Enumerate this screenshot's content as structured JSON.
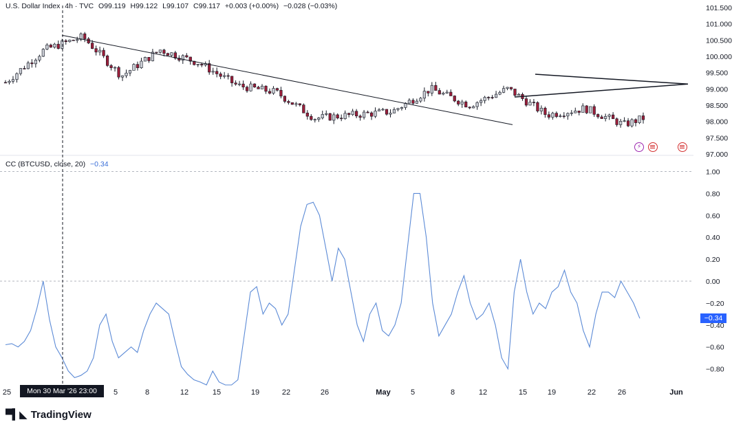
{
  "header": {
    "symbol": "U.S. Dollar Index",
    "interval_source": "4h · TVC",
    "open": "O99.119",
    "high": "H99.122",
    "low": "L99.107",
    "close": "C99.117",
    "change": "+0.003 (+0.00%)",
    "change2": "−0.028 (−0.03%)"
  },
  "indicator": {
    "label": "CC (BTCUSD, close, 20)",
    "value": "−0.34",
    "badge": "−0.34"
  },
  "crosshair": {
    "date_label": "Mon 30 Mar '26  23:00"
  },
  "brand": {
    "name": "TradingView",
    "icon": "tradingview-logo-icon"
  },
  "chart_data": [
    {
      "type": "line",
      "name": "U.S. Dollar Index 4h candlestick price",
      "y_tick_labels": [
        "101.500",
        "101.000",
        "100.500",
        "100.000",
        "99.500",
        "99.000",
        "98.500",
        "98.000",
        "97.500",
        "97.000"
      ],
      "ylim": [
        97.0,
        101.5
      ],
      "x": [
        0,
        4,
        8,
        12,
        16,
        20,
        24,
        28,
        32,
        36,
        40,
        44,
        48,
        52,
        56,
        60,
        64,
        66
      ],
      "values": [
        99.2,
        100.2,
        100.6,
        99.4,
        100.2,
        99.8,
        99.1,
        98.9,
        98.1,
        98.2,
        98.3,
        99.0,
        98.5,
        99.0,
        98.2,
        98.4,
        97.9,
        98.1
      ],
      "trendlines": [
        {
          "name": "descending resistance",
          "from": [
            100.65
          ],
          "to": [
            97.9
          ]
        },
        {
          "name": "triangle upper",
          "from": [
            99.45
          ],
          "to": [
            99.15
          ]
        },
        {
          "name": "triangle lower",
          "from": [
            98.75
          ],
          "to": [
            99.15
          ]
        }
      ]
    },
    {
      "type": "line",
      "name": "CC (BTCUSD, close, 20)",
      "y_tick_labels": [
        "1.00",
        "0.80",
        "0.60",
        "0.40",
        "0.20",
        "0.00",
        "−0.20",
        "−0.40",
        "−0.60",
        "−0.80"
      ],
      "ylim": [
        -0.95,
        1.0
      ],
      "reference_lines": [
        1.0,
        0.0
      ],
      "x_tick_labels": [
        "25",
        "5",
        "8",
        "12",
        "15",
        "19",
        "22",
        "26",
        "May",
        "5",
        "8",
        "12",
        "15",
        "19",
        "22",
        "26",
        "Jun"
      ],
      "values": [
        -0.58,
        -0.57,
        -0.6,
        -0.55,
        -0.45,
        -0.25,
        0.0,
        -0.35,
        -0.6,
        -0.7,
        -0.82,
        -0.88,
        -0.86,
        -0.82,
        -0.7,
        -0.4,
        -0.3,
        -0.55,
        -0.7,
        -0.65,
        -0.6,
        -0.65,
        -0.45,
        -0.3,
        -0.2,
        -0.25,
        -0.3,
        -0.55,
        -0.78,
        -0.85,
        -0.9,
        -0.92,
        -0.95,
        -0.82,
        -0.92,
        -0.95,
        -0.95,
        -0.9,
        -0.5,
        -0.1,
        -0.05,
        -0.3,
        -0.2,
        -0.25,
        -0.4,
        -0.3,
        0.1,
        0.5,
        0.7,
        0.72,
        0.6,
        0.3,
        0.0,
        0.3,
        0.2,
        -0.1,
        -0.4,
        -0.55,
        -0.3,
        -0.2,
        -0.45,
        -0.5,
        -0.4,
        -0.2,
        0.3,
        0.8,
        0.8,
        0.4,
        -0.2,
        -0.5,
        -0.4,
        -0.3,
        -0.1,
        0.05,
        -0.2,
        -0.35,
        -0.3,
        -0.2,
        -0.4,
        -0.7,
        -0.8,
        -0.1,
        0.2,
        -0.1,
        -0.3,
        -0.2,
        -0.25,
        -0.1,
        -0.05,
        0.1,
        -0.1,
        -0.2,
        -0.45,
        -0.6,
        -0.3,
        -0.1,
        -0.1,
        -0.15,
        0.0,
        -0.1,
        -0.2,
        -0.34
      ]
    }
  ]
}
